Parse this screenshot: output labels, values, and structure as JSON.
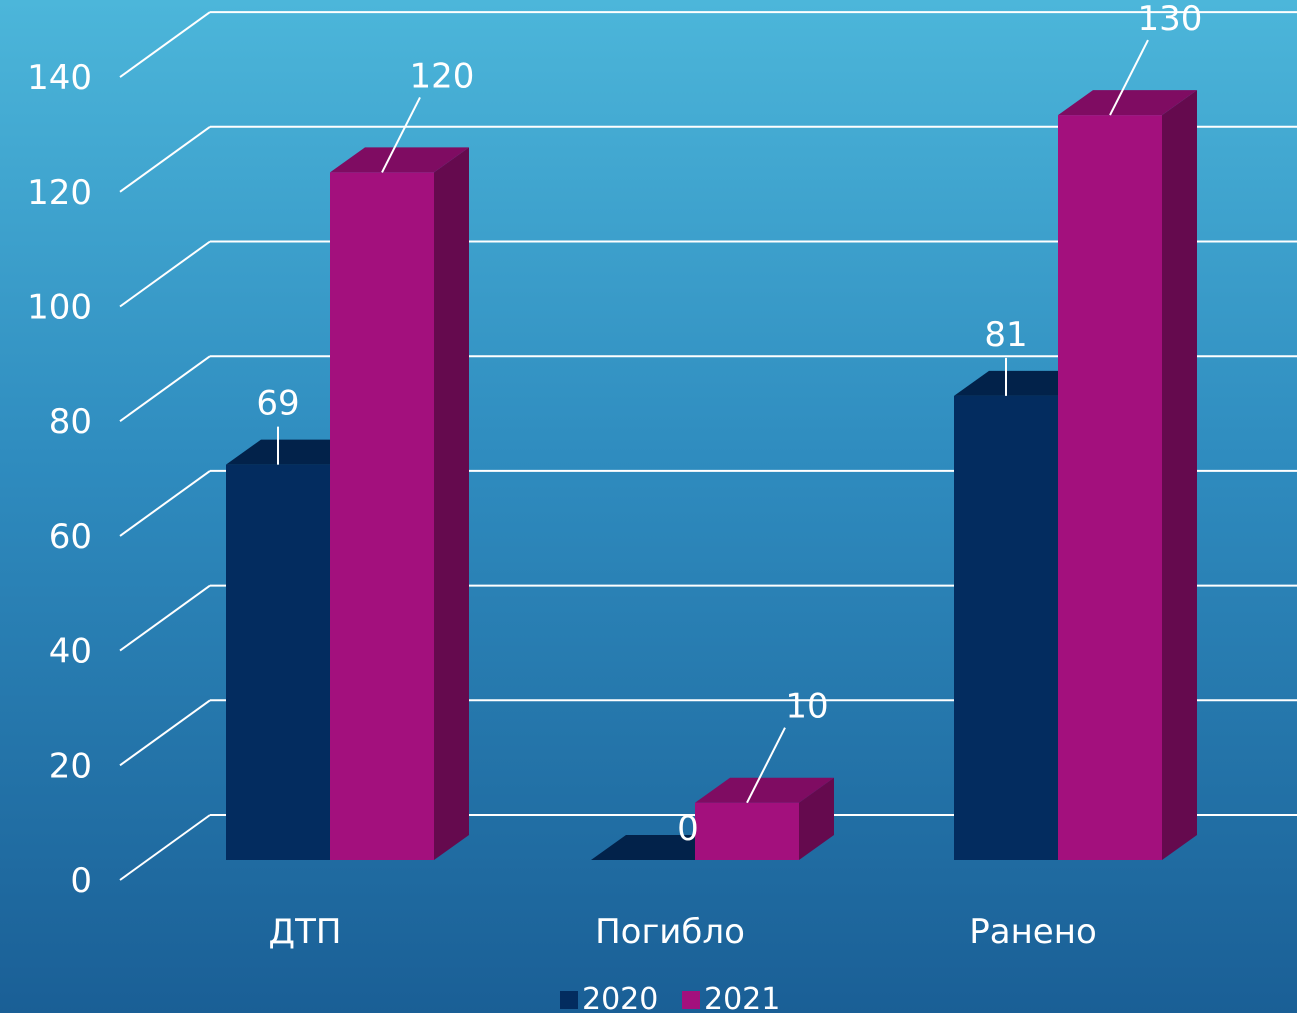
{
  "chart_data": {
    "type": "bar",
    "categories": [
      "ДТП",
      "Погибло",
      "Ранено"
    ],
    "series": [
      {
        "name": "2020",
        "values": [
          69,
          0,
          81
        ],
        "color": "#032c5f"
      },
      {
        "name": "2021",
        "values": [
          120,
          10,
          130
        ],
        "color": "#a3107d"
      }
    ],
    "ylim": [
      0,
      140
    ],
    "yticks": [
      0,
      20,
      40,
      60,
      80,
      100,
      120,
      140
    ],
    "grid": true,
    "legend": "bottom"
  }
}
